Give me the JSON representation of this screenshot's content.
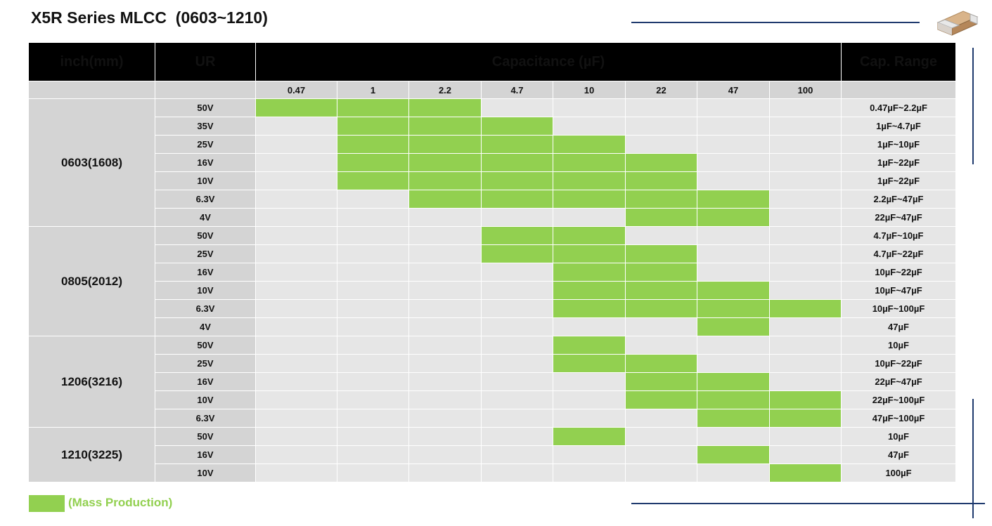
{
  "title": "X5R Series MLCC  (0603~1210)",
  "colors": {
    "mass_production": "#92d050",
    "header_bg": "#000000",
    "size_bg": "#d4d4d4",
    "cell_bg": "#e6e6e6"
  },
  "header": {
    "size": "inch(mm)",
    "ur": "UR",
    "capacitance": "Capacitance (µF)",
    "cap_range": "Cap. Range"
  },
  "capacitances": [
    "0.47",
    "1",
    "2.2",
    "4.7",
    "10",
    "22",
    "47",
    "100"
  ],
  "groups": [
    {
      "size": "0603(1608)",
      "rows": [
        {
          "ur": "50V",
          "from": 0,
          "to": 2,
          "range": "0.47µF~2.2µF"
        },
        {
          "ur": "35V",
          "from": 1,
          "to": 3,
          "range": "1µF~4.7µF"
        },
        {
          "ur": "25V",
          "from": 1,
          "to": 4,
          "range": "1µF~10µF"
        },
        {
          "ur": "16V",
          "from": 1,
          "to": 5,
          "range": "1µF~22µF"
        },
        {
          "ur": "10V",
          "from": 1,
          "to": 5,
          "range": "1µF~22µF"
        },
        {
          "ur": "6.3V",
          "from": 2,
          "to": 6,
          "range": "2.2µF~47µF"
        },
        {
          "ur": "4V",
          "from": 5,
          "to": 6,
          "range": "22µF~47µF"
        }
      ]
    },
    {
      "size": "0805(2012)",
      "rows": [
        {
          "ur": "50V",
          "from": 3,
          "to": 4,
          "range": "4.7µF~10µF"
        },
        {
          "ur": "25V",
          "from": 3,
          "to": 5,
          "range": "4.7µF~22µF"
        },
        {
          "ur": "16V",
          "from": 4,
          "to": 5,
          "range": "10µF~22µF"
        },
        {
          "ur": "10V",
          "from": 4,
          "to": 6,
          "range": "10µF~47µF"
        },
        {
          "ur": "6.3V",
          "from": 4,
          "to": 7,
          "range": "10µF~100µF"
        },
        {
          "ur": "4V",
          "from": 6,
          "to": 6,
          "range": "47µF"
        }
      ]
    },
    {
      "size": "1206(3216)",
      "rows": [
        {
          "ur": "50V",
          "from": 4,
          "to": 4,
          "range": "10µF"
        },
        {
          "ur": "25V",
          "from": 4,
          "to": 5,
          "range": "10µF~22µF"
        },
        {
          "ur": "16V",
          "from": 5,
          "to": 6,
          "range": "22µF~47µF"
        },
        {
          "ur": "10V",
          "from": 5,
          "to": 7,
          "range": "22µF~100µF"
        },
        {
          "ur": "6.3V",
          "from": 6,
          "to": 7,
          "range": "47µF~100µF"
        }
      ]
    },
    {
      "size": "1210(3225)",
      "rows": [
        {
          "ur": "50V",
          "from": 4,
          "to": 4,
          "range": "10µF"
        },
        {
          "ur": "16V",
          "from": 6,
          "to": 6,
          "range": "47µF"
        },
        {
          "ur": "10V",
          "from": 7,
          "to": 7,
          "range": "100µF"
        }
      ]
    }
  ],
  "legend": {
    "label": "(Mass Production)"
  },
  "decor": {
    "chip_icon": "mlcc-chip-icon"
  }
}
